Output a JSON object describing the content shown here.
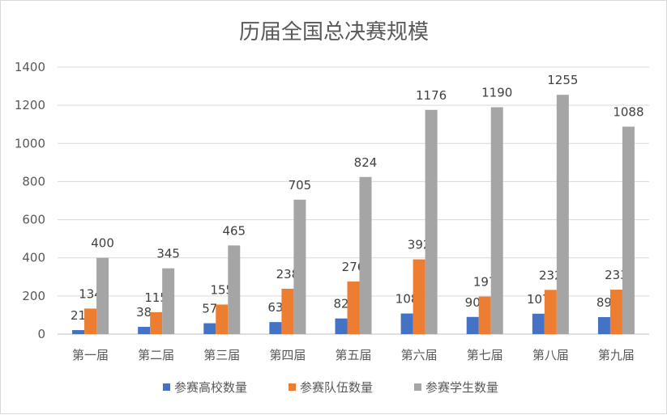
{
  "chart_data": {
    "type": "bar",
    "title": "历届全国总决赛规模",
    "categories": [
      "第一届",
      "第二届",
      "第三届",
      "第四届",
      "第五届",
      "第六届",
      "第七届",
      "第八届",
      "第九届"
    ],
    "series": [
      {
        "name": "参赛高校数量",
        "color": "#4472c4",
        "values": [
          21,
          38,
          57,
          63,
          82,
          108,
          90,
          107,
          89
        ]
      },
      {
        "name": "参赛队伍数量",
        "color": "#ed7d31",
        "values": [
          134,
          115,
          155,
          238,
          276,
          392,
          197,
          232,
          233
        ]
      },
      {
        "name": "参赛学生数量",
        "color": "#a5a5a5",
        "values": [
          400,
          345,
          465,
          705,
          824,
          1176,
          1190,
          1255,
          1088
        ]
      }
    ],
    "ylim": [
      0,
      1400
    ],
    "yticks": [
      "0",
      "200",
      "400",
      "600",
      "800",
      "1000",
      "1200",
      "1400"
    ],
    "grid": true,
    "legend": "bottom"
  }
}
